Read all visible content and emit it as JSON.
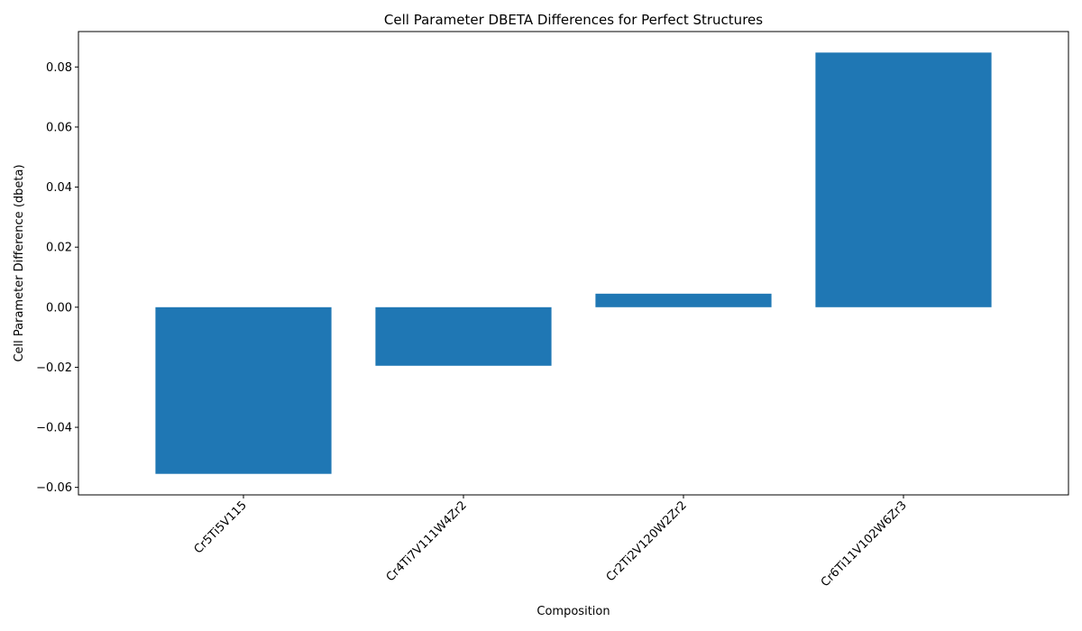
{
  "chart_data": {
    "type": "bar",
    "title": "Cell Parameter DBETA Differences for Perfect Structures",
    "xlabel": "Composition",
    "ylabel": "Cell Parameter Difference (dbeta)",
    "categories": [
      "Cr5Ti5V115",
      "Cr4Ti7V111W4Zr2",
      "Cr2Ti2V120W2Zr2",
      "Cr6Ti11V102W6Zr3"
    ],
    "values": [
      -0.0555,
      -0.0195,
      0.0045,
      0.0848
    ],
    "ylim": [
      -0.0625,
      0.0918
    ],
    "yticks": [
      -0.06,
      -0.04,
      -0.02,
      0.0,
      0.02,
      0.04,
      0.06,
      0.08
    ],
    "ytick_labels": [
      "−0.06",
      "−0.04",
      "−0.02",
      "0.00",
      "0.02",
      "0.04",
      "0.06",
      "0.08"
    ],
    "bar_color": "#1f77b4",
    "grid": false,
    "legend": "none"
  }
}
